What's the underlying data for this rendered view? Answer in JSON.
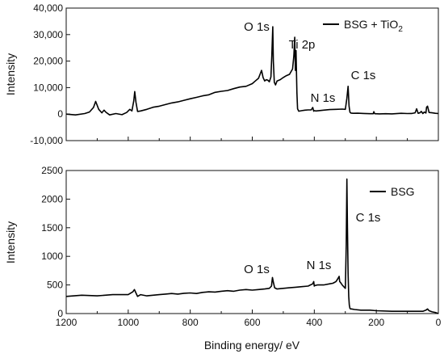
{
  "chart_data": [
    {
      "type": "line",
      "ylabel": "Intensity",
      "xlim": [
        1200,
        0
      ],
      "ylim": [
        -10000,
        40000
      ],
      "yticks": [
        -10000,
        0,
        10000,
        20000,
        30000,
        40000
      ],
      "ytick_labels": [
        "-10,000",
        "0",
        "10,000",
        "20,000",
        "30,000",
        "40,000"
      ],
      "grid": false,
      "legend": "top-right",
      "series": [
        {
          "name_main": "BSG + TiO",
          "name_sub": "2",
          "x": [
            1200,
            1170,
            1140,
            1125,
            1112,
            1105,
            1095,
            1085,
            1078,
            1072,
            1060,
            1040,
            1020,
            1005,
            995,
            988,
            982,
            979,
            975,
            970,
            960,
            940,
            920,
            900,
            880,
            860,
            840,
            820,
            800,
            780,
            760,
            740,
            720,
            700,
            680,
            660,
            640,
            620,
            600,
            590,
            580,
            575,
            570,
            565,
            560,
            555,
            550,
            545,
            540,
            537,
            534,
            532,
            529,
            525,
            520,
            510,
            500,
            490,
            480,
            470,
            466,
            463,
            461,
            459,
            458,
            456,
            454,
            450,
            440,
            430,
            420,
            410,
            405,
            402,
            400,
            395,
            385,
            370,
            350,
            330,
            310,
            300,
            295,
            291,
            288,
            285,
            282,
            275,
            260,
            240,
            220,
            210,
            208,
            205,
            190,
            170,
            150,
            120,
            100,
            85,
            75,
            70,
            65,
            60,
            55,
            50,
            45,
            40,
            38,
            35,
            30,
            20,
            10,
            0
          ],
          "y": [
            0,
            -300,
            200,
            800,
            2500,
            4800,
            1800,
            500,
            1500,
            700,
            -300,
            200,
            -200,
            600,
            1800,
            1200,
            5000,
            8500,
            4500,
            1000,
            1200,
            1800,
            2600,
            3000,
            3600,
            4200,
            4600,
            5200,
            5800,
            6300,
            6900,
            7300,
            8200,
            8600,
            8900,
            9600,
            10200,
            10500,
            11500,
            12500,
            13500,
            15000,
            16500,
            13800,
            12500,
            13000,
            12800,
            12200,
            14000,
            22000,
            33000,
            20000,
            12000,
            11000,
            12500,
            13000,
            13800,
            14500,
            15000,
            17000,
            22000,
            29000,
            16500,
            24000,
            18000,
            8000,
            2000,
            1100,
            1300,
            1500,
            1600,
            1600,
            2500,
            1100,
            1300,
            1200,
            1300,
            1500,
            1700,
            1800,
            1900,
            1800,
            6000,
            10500,
            3000,
            700,
            400,
            300,
            350,
            250,
            150,
            150,
            900,
            150,
            100,
            150,
            100,
            300,
            200,
            250,
            500,
            2000,
            300,
            500,
            1000,
            200,
            800,
            400,
            2600,
            3000,
            600,
            500,
            300,
            200
          ]
        }
      ],
      "annotations": [
        {
          "text": "O 1s",
          "x": 532,
          "y": 33000
        },
        {
          "text": "Ti 2p",
          "x": 459,
          "y": 29000
        },
        {
          "text": "N 1s",
          "x": 400,
          "y": 2500
        },
        {
          "text": "C 1s",
          "x": 288,
          "y": 10500
        }
      ]
    },
    {
      "type": "line",
      "xlabel": "Binding energy/ eV",
      "ylabel": "Intensity",
      "xlim": [
        1200,
        0
      ],
      "ylim": [
        0,
        2500
      ],
      "yticks": [
        0,
        500,
        1000,
        1500,
        2000,
        2500
      ],
      "ytick_labels": [
        "0",
        "500",
        "1000",
        "1500",
        "2000",
        "2500"
      ],
      "xticks": [
        1200,
        1000,
        800,
        600,
        400,
        200,
        0
      ],
      "xtick_labels": [
        "1200",
        "1000",
        "800",
        "600",
        "400",
        "200",
        "0"
      ],
      "grid": false,
      "legend": "top-right",
      "series": [
        {
          "name_main": "BSG",
          "name_sub": "",
          "x": [
            1200,
            1150,
            1100,
            1050,
            1000,
            985,
            980,
            975,
            970,
            960,
            940,
            920,
            900,
            880,
            860,
            840,
            820,
            800,
            780,
            760,
            740,
            720,
            700,
            680,
            660,
            640,
            620,
            600,
            580,
            560,
            545,
            538,
            535,
            532,
            528,
            520,
            500,
            480,
            460,
            440,
            420,
            405,
            402,
            400,
            398,
            390,
            370,
            350,
            340,
            330,
            325,
            320,
            318,
            315,
            310,
            305,
            300,
            297,
            295,
            293,
            291,
            289,
            287,
            285,
            283,
            280,
            270,
            250,
            220,
            200,
            150,
            100,
            50,
            40,
            35,
            30,
            20,
            10,
            0
          ],
          "y": [
            300,
            320,
            310,
            330,
            330,
            380,
            420,
            360,
            300,
            330,
            310,
            320,
            330,
            340,
            350,
            340,
            355,
            360,
            350,
            370,
            380,
            375,
            390,
            400,
            390,
            410,
            420,
            410,
            420,
            430,
            440,
            480,
            630,
            550,
            450,
            430,
            440,
            450,
            460,
            470,
            480,
            520,
            560,
            480,
            490,
            500,
            500,
            520,
            530,
            560,
            600,
            650,
            560,
            540,
            500,
            470,
            440,
            1200,
            2350,
            1500,
            700,
            300,
            150,
            90,
            80,
            80,
            70,
            60,
            60,
            50,
            40,
            40,
            40,
            60,
            80,
            50,
            30,
            20,
            0
          ]
        }
      ],
      "annotations": [
        {
          "text": "O 1s",
          "x": 535,
          "y": 630
        },
        {
          "text": "N 1s",
          "x": 402,
          "y": 560
        },
        {
          "text": "C 1s",
          "x": 294,
          "y": 2350
        }
      ]
    }
  ]
}
